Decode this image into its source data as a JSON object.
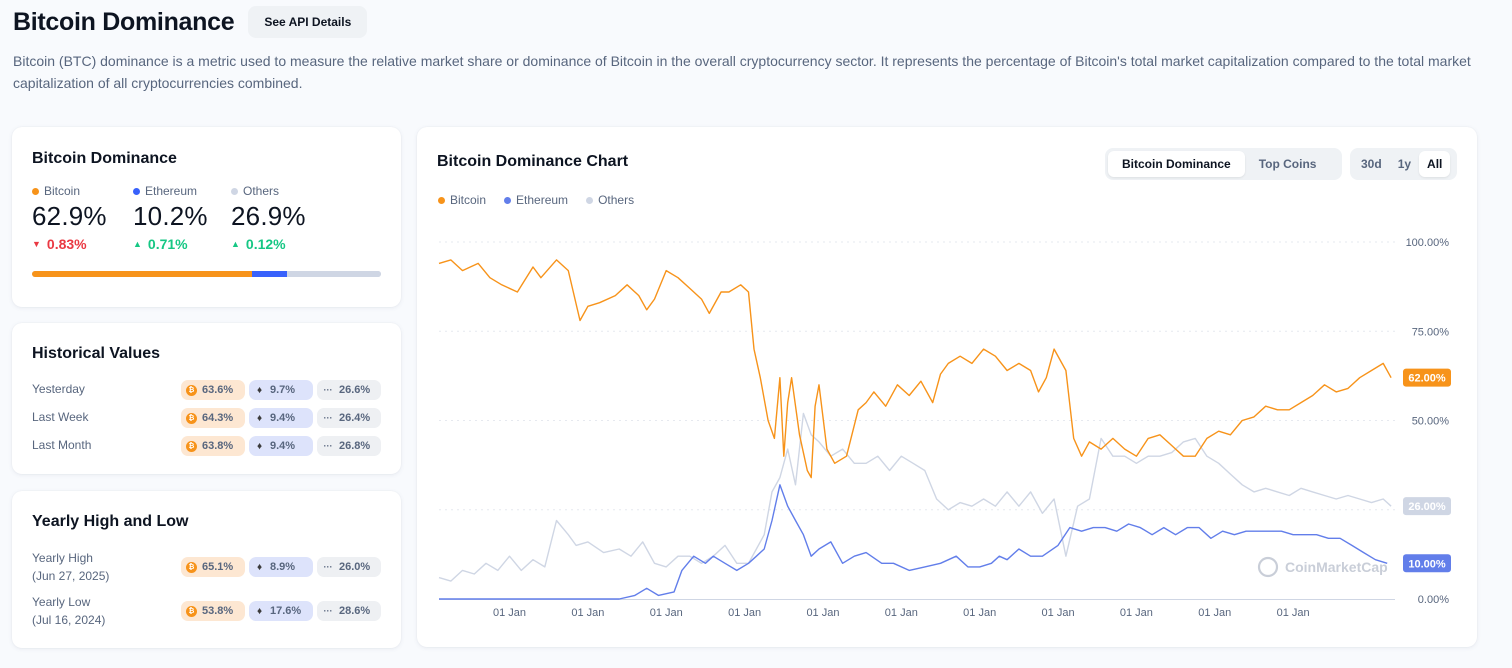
{
  "header": {
    "title": "Bitcoin Dominance",
    "api_button": "See API Details",
    "description": "Bitcoin (BTC) dominance is a metric used to measure the relative market share or dominance of Bitcoin in the overall cryptocurrency sector. It represents the percentage of Bitcoin's total market capitalization compared to the total market capitalization of all cryptocurrencies combined."
  },
  "colors": {
    "bitcoin": "#f7931a",
    "ethereum": "#627eea",
    "others": "#cfd6e4",
    "down": "#ea3943",
    "up": "#16c784"
  },
  "dominance": {
    "title": "Bitcoin Dominance",
    "items": [
      {
        "name": "Bitcoin",
        "value": "62.9%",
        "change": "0.83%",
        "direction": "down",
        "share": 62.9
      },
      {
        "name": "Ethereum",
        "value": "10.2%",
        "change": "0.71%",
        "direction": "up",
        "share": 10.2
      },
      {
        "name": "Others",
        "value": "26.9%",
        "change": "0.12%",
        "direction": "up",
        "share": 26.9
      }
    ]
  },
  "historical": {
    "title": "Historical Values",
    "rows": [
      {
        "label": "Yesterday",
        "btc": "63.6%",
        "eth": "9.7%",
        "others": "26.6%"
      },
      {
        "label": "Last Week",
        "btc": "64.3%",
        "eth": "9.4%",
        "others": "26.4%"
      },
      {
        "label": "Last Month",
        "btc": "63.8%",
        "eth": "9.4%",
        "others": "26.8%"
      }
    ]
  },
  "yearly": {
    "title": "Yearly High and Low",
    "rows": [
      {
        "label": "Yearly High",
        "date": "(Jun 27, 2025)",
        "btc": "65.1%",
        "eth": "8.9%",
        "others": "26.0%"
      },
      {
        "label": "Yearly Low",
        "date": "(Jul 16, 2024)",
        "btc": "53.8%",
        "eth": "17.6%",
        "others": "28.6%"
      }
    ]
  },
  "chart": {
    "title": "Bitcoin Dominance Chart",
    "type_tabs": [
      "Bitcoin Dominance",
      "Top Coins"
    ],
    "active_type": "Bitcoin Dominance",
    "range_tabs": [
      "30d",
      "1y",
      "All"
    ],
    "active_range": "All",
    "legend": [
      "Bitcoin",
      "Ethereum",
      "Others"
    ],
    "watermark": "CoinMarketCap"
  },
  "chart_data": {
    "type": "line",
    "title": "Bitcoin Dominance Chart",
    "xlabel": "",
    "ylabel": "",
    "ylim": [
      0,
      100
    ],
    "y_ticks": [
      "0.00%",
      "25.00%",
      "50.00%",
      "75.00%",
      "100.00%"
    ],
    "x_ticks": [
      "01 Jan",
      "01 Jan",
      "01 Jan",
      "01 Jan",
      "01 Jan",
      "01 Jan",
      "01 Jan",
      "01 Jan",
      "01 Jan",
      "01 Jan",
      "01 Jan"
    ],
    "x_tick_positions": [
      2014,
      2015,
      2016,
      2017,
      2018,
      2019,
      2020,
      2021,
      2022,
      2023,
      2024
    ],
    "xlim": [
      2013.1,
      2025.3
    ],
    "grid": true,
    "legend_position": "top-left",
    "end_labels": {
      "Bitcoin": "62.00%",
      "Ethereum": "10.00%",
      "Others": "26.00%"
    },
    "series": [
      {
        "name": "Bitcoin",
        "color": "#f7931a",
        "x": [
          2013.1,
          2013.25,
          2013.4,
          2013.5,
          2013.6,
          2013.75,
          2013.9,
          2014.1,
          2014.3,
          2014.4,
          2014.6,
          2014.75,
          2014.9,
          2015.0,
          2015.15,
          2015.35,
          2015.5,
          2015.65,
          2015.75,
          2015.85,
          2016.0,
          2016.15,
          2016.3,
          2016.45,
          2016.55,
          2016.7,
          2016.8,
          2016.95,
          2017.05,
          2017.12,
          2017.2,
          2017.3,
          2017.38,
          2017.45,
          2017.5,
          2017.55,
          2017.6,
          2017.7,
          2017.8,
          2017.85,
          2017.9,
          2017.95,
          2018.05,
          2018.15,
          2018.3,
          2018.45,
          2018.55,
          2018.65,
          2018.8,
          2018.95,
          2019.1,
          2019.25,
          2019.4,
          2019.5,
          2019.6,
          2019.75,
          2019.9,
          2020.05,
          2020.2,
          2020.35,
          2020.5,
          2020.65,
          2020.75,
          2020.85,
          2020.95,
          2021.1,
          2021.2,
          2021.3,
          2021.4,
          2021.55,
          2021.7,
          2021.85,
          2022.0,
          2022.15,
          2022.3,
          2022.45,
          2022.6,
          2022.75,
          2022.9,
          2023.05,
          2023.2,
          2023.35,
          2023.5,
          2023.65,
          2023.8,
          2023.95,
          2024.1,
          2024.25,
          2024.4,
          2024.55,
          2024.7,
          2024.85,
          2025.0,
          2025.15,
          2025.25
        ],
        "y": [
          94,
          95,
          92,
          93,
          94,
          90,
          88,
          86,
          93,
          90,
          95,
          92,
          78,
          82,
          83,
          85,
          88,
          85,
          81,
          84,
          92,
          90,
          87,
          84,
          80,
          86,
          86,
          88,
          86,
          70,
          62,
          50,
          45,
          62,
          40,
          55,
          62,
          46,
          36,
          34,
          54,
          60,
          42,
          38,
          40,
          53,
          55,
          58,
          54,
          60,
          57,
          61,
          55,
          63,
          66,
          68,
          66,
          70,
          68,
          64,
          66,
          64,
          58,
          62,
          70,
          64,
          45,
          40,
          44,
          42,
          45,
          42,
          40,
          45,
          46,
          43,
          40,
          40,
          45,
          47,
          46,
          50,
          51,
          54,
          53,
          53,
          55,
          57,
          60,
          58,
          59,
          62,
          64,
          66,
          62
        ]
      },
      {
        "name": "Ethereum",
        "color": "#627eea",
        "x": [
          2013.1,
          2014.0,
          2015.0,
          2015.4,
          2015.6,
          2015.75,
          2015.9,
          2016.1,
          2016.2,
          2016.35,
          2016.5,
          2016.6,
          2016.75,
          2016.9,
          2017.05,
          2017.15,
          2017.25,
          2017.35,
          2017.45,
          2017.55,
          2017.65,
          2017.75,
          2017.85,
          2017.95,
          2018.1,
          2018.25,
          2018.4,
          2018.55,
          2018.75,
          2018.9,
          2019.1,
          2019.3,
          2019.5,
          2019.7,
          2019.85,
          2020.0,
          2020.15,
          2020.25,
          2020.35,
          2020.5,
          2020.65,
          2020.8,
          2021.0,
          2021.15,
          2021.3,
          2021.45,
          2021.6,
          2021.75,
          2021.9,
          2022.05,
          2022.2,
          2022.35,
          2022.5,
          2022.65,
          2022.8,
          2022.95,
          2023.1,
          2023.25,
          2023.4,
          2023.55,
          2023.7,
          2023.85,
          2024.0,
          2024.15,
          2024.3,
          2024.45,
          2024.6,
          2024.75,
          2024.9,
          2025.05,
          2025.2
        ],
        "y": [
          0,
          0,
          0,
          0,
          1,
          3,
          1,
          2,
          8,
          12,
          10,
          12,
          10,
          8,
          10,
          12,
          14,
          22,
          32,
          26,
          22,
          18,
          12,
          14,
          16,
          10,
          12,
          13,
          10,
          10,
          8,
          9,
          10,
          12,
          9,
          9,
          10,
          12,
          11,
          14,
          12,
          12,
          15,
          20,
          19,
          20,
          20,
          19,
          21,
          20,
          18,
          20,
          18,
          20,
          20,
          17,
          19,
          18,
          19,
          19,
          19,
          19,
          18,
          18,
          18,
          17,
          17,
          15,
          13,
          11,
          10
        ]
      },
      {
        "name": "Others",
        "color": "#cfd6e4",
        "x": [
          2013.1,
          2013.25,
          2013.4,
          2013.55,
          2013.7,
          2013.85,
          2014.0,
          2014.15,
          2014.3,
          2014.45,
          2014.6,
          2014.75,
          2014.85,
          2015.0,
          2015.2,
          2015.4,
          2015.55,
          2015.7,
          2015.85,
          2016.0,
          2016.15,
          2016.3,
          2016.45,
          2016.6,
          2016.75,
          2016.9,
          2017.05,
          2017.15,
          2017.25,
          2017.35,
          2017.45,
          2017.55,
          2017.65,
          2017.75,
          2017.85,
          2017.95,
          2018.1,
          2018.25,
          2018.4,
          2018.55,
          2018.7,
          2018.85,
          2019.0,
          2019.15,
          2019.3,
          2019.45,
          2019.6,
          2019.75,
          2019.9,
          2020.05,
          2020.2,
          2020.35,
          2020.5,
          2020.65,
          2020.8,
          2020.95,
          2021.1,
          2021.25,
          2021.4,
          2021.55,
          2021.7,
          2021.85,
          2022.0,
          2022.15,
          2022.3,
          2022.45,
          2022.6,
          2022.75,
          2022.9,
          2023.05,
          2023.2,
          2023.35,
          2023.5,
          2023.65,
          2023.8,
          2023.95,
          2024.1,
          2024.25,
          2024.4,
          2024.55,
          2024.7,
          2024.85,
          2025.0,
          2025.15,
          2025.25
        ],
        "y": [
          6,
          5,
          8,
          7,
          10,
          8,
          12,
          8,
          11,
          9,
          22,
          18,
          15,
          16,
          13,
          14,
          12,
          16,
          10,
          9,
          12,
          12,
          10,
          12,
          15,
          10,
          10,
          14,
          18,
          30,
          34,
          42,
          32,
          52,
          46,
          44,
          40,
          42,
          38,
          38,
          40,
          36,
          40,
          38,
          36,
          28,
          25,
          27,
          26,
          28,
          26,
          30,
          26,
          30,
          24,
          28,
          12,
          26,
          28,
          45,
          40,
          40,
          38,
          40,
          40,
          41,
          44,
          45,
          40,
          38,
          35,
          32,
          30,
          31,
          30,
          29,
          31,
          30,
          29,
          28,
          29,
          28,
          27,
          28,
          26
        ]
      }
    ]
  }
}
